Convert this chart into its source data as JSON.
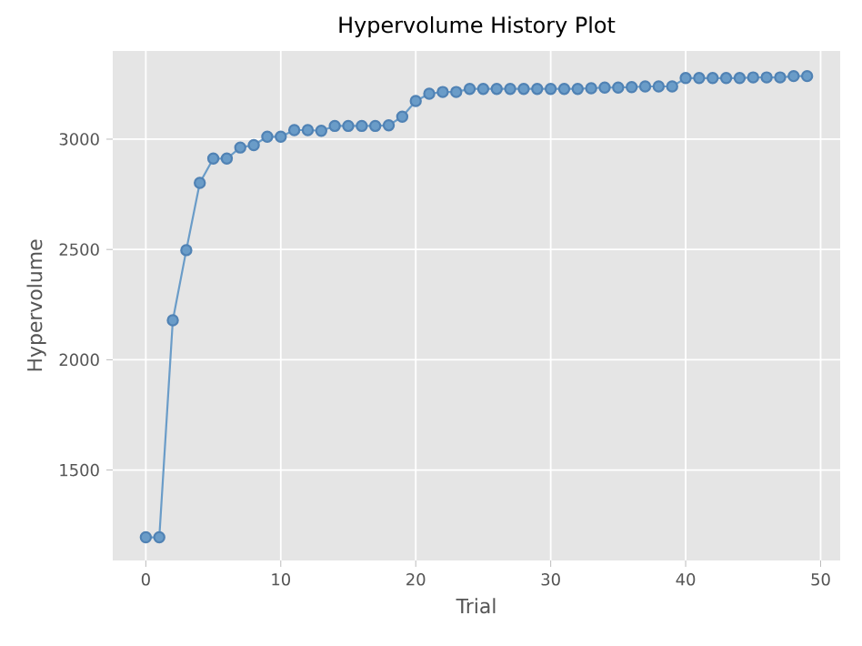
{
  "chart_data": {
    "type": "line",
    "title": "Hypervolume History Plot",
    "xlabel": "Trial",
    "ylabel": "Hypervolume",
    "x": [
      0,
      1,
      2,
      3,
      4,
      5,
      6,
      7,
      8,
      9,
      10,
      11,
      12,
      13,
      14,
      15,
      16,
      17,
      18,
      19,
      20,
      21,
      22,
      23,
      24,
      25,
      26,
      27,
      28,
      29,
      30,
      31,
      32,
      33,
      34,
      35,
      36,
      37,
      38,
      39,
      40,
      41,
      42,
      43,
      44,
      45,
      46,
      47,
      48,
      49
    ],
    "series": [
      {
        "color": "#6a9cc8",
        "values": [
          1195,
          1195,
          2179,
          2497,
          2802,
          2912,
          2912,
          2962,
          2973,
          3011,
          3011,
          3041,
          3041,
          3038,
          3060,
          3060,
          3060,
          3060,
          3063,
          3102,
          3173,
          3206,
          3214,
          3214,
          3228,
          3228,
          3228,
          3228,
          3228,
          3228,
          3228,
          3228,
          3228,
          3231,
          3234,
          3234,
          3236,
          3239,
          3239,
          3239,
          3277,
          3277,
          3277,
          3277,
          3277,
          3280,
          3280,
          3280,
          3286,
          3286
        ]
      }
    ],
    "xlim": [
      -2.45,
      51.45
    ],
    "ylim": [
      1090,
      3400
    ],
    "xticks": [
      0,
      10,
      20,
      30,
      40,
      50
    ],
    "yticks": [
      1500,
      2000,
      2500,
      3000
    ],
    "grid": true,
    "marker": "circle",
    "line_style": "solid"
  }
}
